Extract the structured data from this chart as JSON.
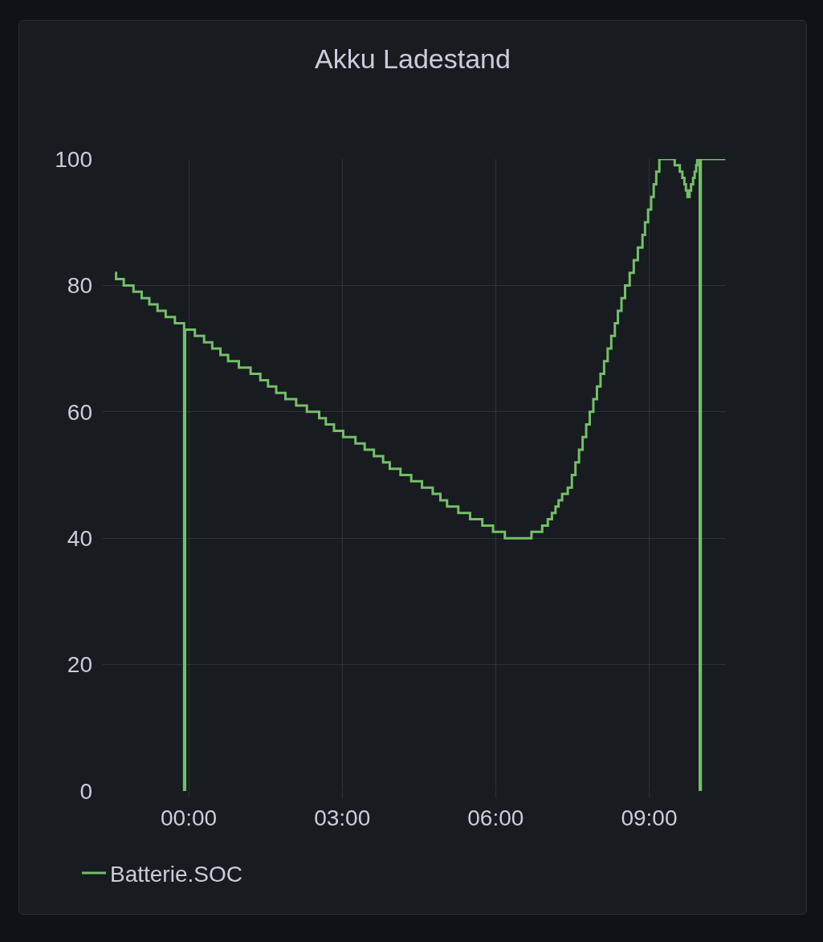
{
  "chart_data": {
    "type": "step",
    "title": "Akku Ladestand",
    "x": [
      -1.44,
      -1.42,
      -1.27,
      -1.08,
      -0.92,
      -0.77,
      -0.61,
      -0.45,
      -0.27,
      -0.09,
      -0.07,
      0.12,
      0.3,
      0.46,
      0.62,
      0.77,
      0.98,
      1.21,
      1.4,
      1.55,
      1.71,
      1.89,
      2.1,
      2.31,
      2.55,
      2.68,
      2.84,
      3.02,
      3.26,
      3.44,
      3.62,
      3.8,
      3.93,
      4.14,
      4.35,
      4.56,
      4.77,
      4.92,
      5.05,
      5.27,
      5.5,
      5.74,
      5.95,
      6.18,
      6.7,
      6.91,
      7.02,
      7.1,
      7.17,
      7.23,
      7.3,
      7.41,
      7.49,
      7.56,
      7.63,
      7.7,
      7.77,
      7.84,
      7.91,
      7.98,
      8.05,
      8.12,
      8.19,
      8.26,
      8.33,
      8.39,
      8.46,
      8.53,
      8.62,
      8.7,
      8.78,
      8.87,
      8.92,
      8.98,
      9.04,
      9.09,
      9.14,
      9.2,
      9.5,
      9.6,
      9.65,
      9.69,
      9.72,
      9.75,
      9.79,
      9.82,
      9.86,
      9.89,
      9.92,
      9.94,
      9.99,
      10.01,
      10.49
    ],
    "series": [
      {
        "name": "Batterie.SOC",
        "color": "#73bf69",
        "values": [
          82,
          81,
          80,
          79,
          78,
          77,
          76,
          75,
          74,
          0,
          73,
          72,
          71,
          70,
          69,
          68,
          67,
          66,
          65,
          64,
          63,
          62,
          61,
          60,
          59,
          58,
          57,
          56,
          55,
          54,
          53,
          52,
          51,
          50,
          49,
          48,
          47,
          46,
          45,
          44,
          43,
          42,
          41,
          40,
          41,
          42,
          43,
          44,
          45,
          46,
          47,
          48,
          50,
          52,
          54,
          56,
          58,
          60,
          62,
          64,
          66,
          68,
          70,
          72,
          74,
          76,
          78,
          80,
          82,
          84,
          86,
          88,
          90,
          92,
          94,
          96,
          98,
          100,
          99,
          98,
          97,
          96,
          95,
          94,
          95,
          96,
          97,
          98,
          99,
          100,
          0,
          100,
          100
        ]
      }
    ],
    "xlim": [
      -1.68,
      10.5
    ],
    "xticks": [
      {
        "value": 0,
        "label": "00:00"
      },
      {
        "value": 3,
        "label": "03:00"
      },
      {
        "value": 6,
        "label": "06:00"
      },
      {
        "value": 9,
        "label": "09:00"
      }
    ],
    "ylim": [
      0,
      100
    ],
    "yticks": [
      0,
      20,
      40,
      60,
      80,
      100
    ],
    "grid": true,
    "legend": "bottom left"
  }
}
